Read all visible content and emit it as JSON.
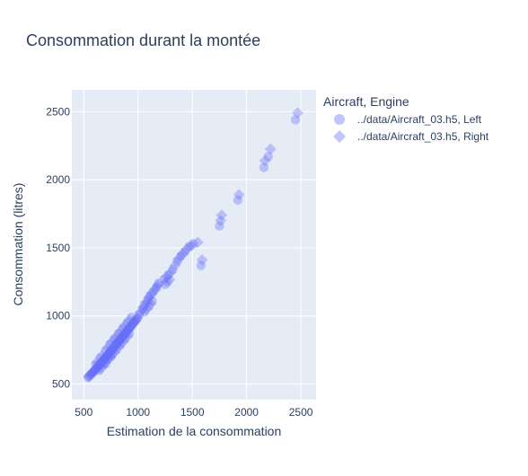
{
  "chart_data": {
    "type": "scatter",
    "title": "Consommation durant la montée",
    "xlabel": "Estimation de la consommation",
    "ylabel": "Consommation (litres)",
    "xlim": [
      390,
      2640
    ],
    "ylim": [
      385,
      2660
    ],
    "x_ticks": [
      500,
      1000,
      1500,
      2000,
      2500
    ],
    "y_ticks": [
      500,
      1000,
      1500,
      2000,
      2500
    ],
    "grid": true,
    "legend": {
      "title": "Aircraft, Engine",
      "placement": "top-right",
      "entries": [
        {
          "label": "../data/Aircraft_03.h5, Left",
          "symbol": "circle"
        },
        {
          "label": "../data/Aircraft_03.h5, Right",
          "symbol": "diamond"
        }
      ]
    },
    "colors": {
      "marker": "#636efa",
      "plot_background": "#e5ecf6",
      "grid": "#ffffff",
      "text": "#2a3f5f"
    },
    "series": [
      {
        "name": "../data/Aircraft_03.h5, Left",
        "symbol": "circle",
        "points": [
          [
            540,
            548
          ],
          [
            555,
            560
          ],
          [
            570,
            575
          ],
          [
            585,
            585
          ],
          [
            600,
            598
          ],
          [
            615,
            610
          ],
          [
            630,
            625
          ],
          [
            645,
            640
          ],
          [
            660,
            655
          ],
          [
            675,
            668
          ],
          [
            690,
            682
          ],
          [
            705,
            695
          ],
          [
            720,
            710
          ],
          [
            735,
            725
          ],
          [
            750,
            740
          ],
          [
            765,
            755
          ],
          [
            780,
            770
          ],
          [
            795,
            785
          ],
          [
            810,
            800
          ],
          [
            825,
            815
          ],
          [
            840,
            830
          ],
          [
            855,
            845
          ],
          [
            870,
            858
          ],
          [
            885,
            872
          ],
          [
            900,
            888
          ],
          [
            915,
            902
          ],
          [
            930,
            918
          ],
          [
            945,
            932
          ],
          [
            960,
            948
          ],
          [
            975,
            962
          ],
          [
            990,
            978
          ],
          [
            610,
            640
          ],
          [
            650,
            690
          ],
          [
            700,
            745
          ],
          [
            740,
            790
          ],
          [
            780,
            830
          ],
          [
            820,
            870
          ],
          [
            860,
            910
          ],
          [
            900,
            950
          ],
          [
            940,
            990
          ],
          [
            640,
            600
          ],
          [
            680,
            640
          ],
          [
            720,
            680
          ],
          [
            760,
            715
          ],
          [
            800,
            750
          ],
          [
            840,
            790
          ],
          [
            880,
            830
          ],
          [
            920,
            870
          ],
          [
            700,
            650
          ],
          [
            750,
            700
          ],
          [
            1010,
            1010
          ],
          [
            1040,
            1050
          ],
          [
            1060,
            1085
          ],
          [
            1090,
            1120
          ],
          [
            1110,
            1150
          ],
          [
            1140,
            1180
          ],
          [
            1170,
            1210
          ],
          [
            1190,
            1240
          ],
          [
            1060,
            1030
          ],
          [
            1100,
            1070
          ],
          [
            1130,
            1110
          ],
          [
            1240,
            1270
          ],
          [
            1280,
            1300
          ],
          [
            1320,
            1340
          ],
          [
            1360,
            1400
          ],
          [
            1270,
            1250
          ],
          [
            1250,
            1230
          ],
          [
            1395,
            1440
          ],
          [
            1430,
            1470
          ],
          [
            1470,
            1510
          ],
          [
            1510,
            1530
          ],
          [
            1580,
            1370
          ],
          [
            1750,
            1660
          ],
          [
            1920,
            1850
          ],
          [
            2160,
            2090
          ],
          [
            2200,
            2170
          ],
          [
            2450,
            2440
          ]
        ]
      },
      {
        "name": "../data/Aircraft_03.h5, Right",
        "symbol": "diamond",
        "points": [
          [
            545,
            555
          ],
          [
            560,
            568
          ],
          [
            575,
            580
          ],
          [
            590,
            592
          ],
          [
            605,
            605
          ],
          [
            620,
            620
          ],
          [
            635,
            632
          ],
          [
            650,
            648
          ],
          [
            665,
            662
          ],
          [
            680,
            675
          ],
          [
            695,
            690
          ],
          [
            710,
            702
          ],
          [
            725,
            718
          ],
          [
            740,
            732
          ],
          [
            755,
            748
          ],
          [
            770,
            762
          ],
          [
            785,
            778
          ],
          [
            800,
            792
          ],
          [
            815,
            808
          ],
          [
            830,
            822
          ],
          [
            845,
            838
          ],
          [
            860,
            852
          ],
          [
            875,
            866
          ],
          [
            890,
            880
          ],
          [
            905,
            895
          ],
          [
            920,
            910
          ],
          [
            935,
            925
          ],
          [
            950,
            940
          ],
          [
            965,
            955
          ],
          [
            980,
            970
          ],
          [
            995,
            985
          ],
          [
            620,
            660
          ],
          [
            670,
            710
          ],
          [
            720,
            765
          ],
          [
            760,
            810
          ],
          [
            800,
            850
          ],
          [
            840,
            890
          ],
          [
            880,
            930
          ],
          [
            920,
            970
          ],
          [
            660,
            615
          ],
          [
            700,
            655
          ],
          [
            740,
            695
          ],
          [
            780,
            730
          ],
          [
            820,
            770
          ],
          [
            860,
            810
          ],
          [
            900,
            850
          ],
          [
            1020,
            1025
          ],
          [
            1050,
            1065
          ],
          [
            1080,
            1100
          ],
          [
            1100,
            1135
          ],
          [
            1130,
            1165
          ],
          [
            1160,
            1195
          ],
          [
            1180,
            1225
          ],
          [
            1080,
            1050
          ],
          [
            1120,
            1090
          ],
          [
            1260,
            1285
          ],
          [
            1300,
            1320
          ],
          [
            1340,
            1370
          ],
          [
            1375,
            1420
          ],
          [
            1290,
            1265
          ],
          [
            1410,
            1455
          ],
          [
            1450,
            1490
          ],
          [
            1490,
            1515
          ],
          [
            1550,
            1540
          ],
          [
            1590,
            1410
          ],
          [
            1760,
            1700
          ],
          [
            1770,
            1740
          ],
          [
            1930,
            1890
          ],
          [
            2170,
            2140
          ],
          [
            2220,
            2225
          ],
          [
            2470,
            2490
          ]
        ]
      }
    ]
  }
}
